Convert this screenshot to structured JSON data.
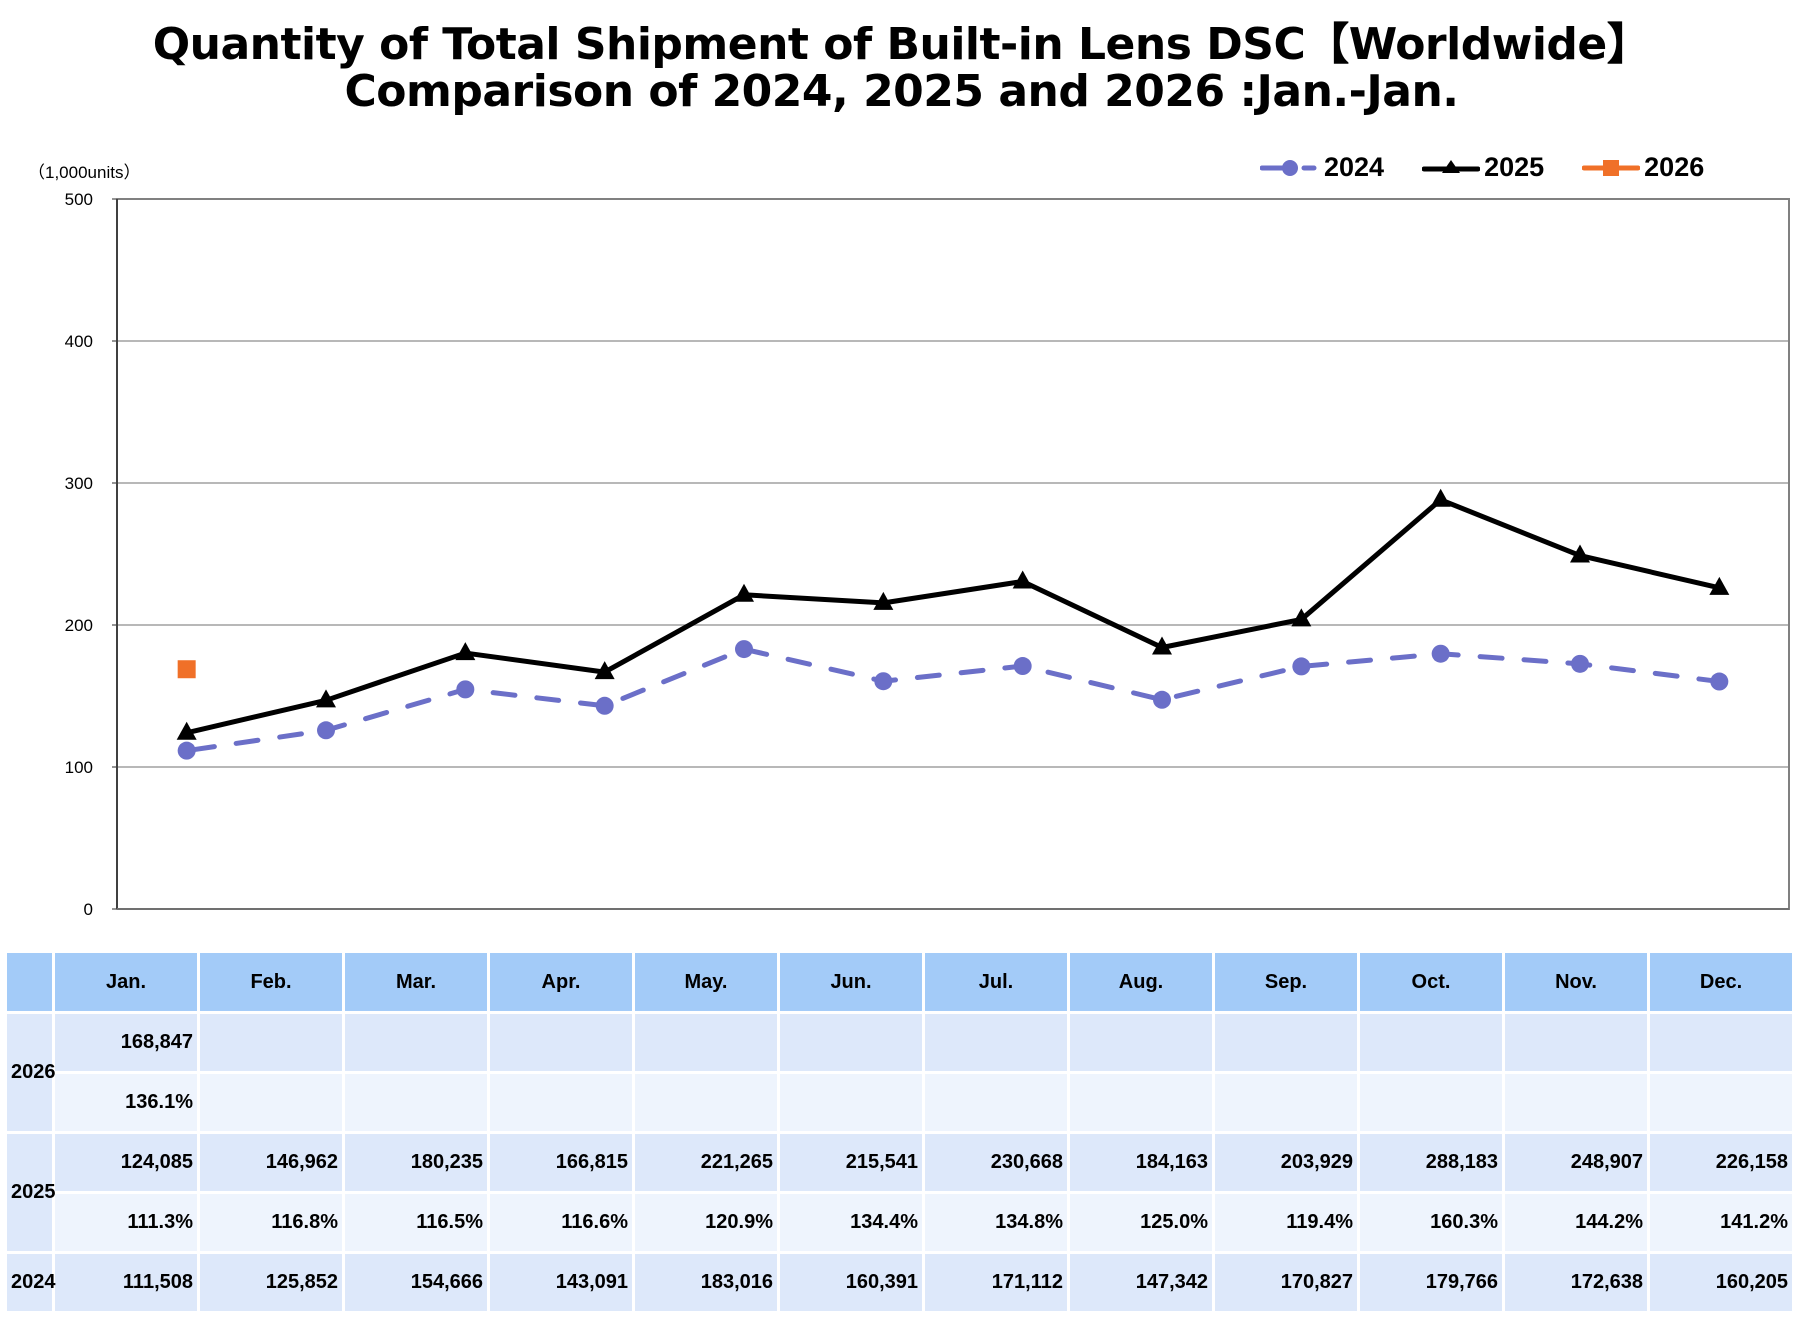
{
  "title_line1": "Quantity of Total Shipment of Built-in Lens DSC【Worldwide】",
  "title_line2": "Comparison of 2024, 2025 and 2026 :Jan.-Jan.",
  "unit_label": "（1,000units）",
  "legend": [
    {
      "label": "2024",
      "color": "#6b6fc8",
      "marker": "circle",
      "dash": true
    },
    {
      "label": "2025",
      "color": "#000000",
      "marker": "triangle",
      "dash": false
    },
    {
      "label": "2026",
      "color": "#f07028",
      "marker": "square",
      "dash": false
    }
  ],
  "chart_data": {
    "type": "line",
    "title": "Quantity of Total Shipment of Built-in Lens DSC【Worldwide】 Comparison of 2024, 2025 and 2026 :Jan.-Jan.",
    "xlabel": "",
    "ylabel": "(1,000units)",
    "ylim": [
      0,
      500
    ],
    "yticks": [
      0,
      100,
      200,
      300,
      400,
      500
    ],
    "grid": true,
    "legend_position": "top-right",
    "categories": [
      "Jan.",
      "Feb.",
      "Mar.",
      "Apr.",
      "May.",
      "Jun.",
      "Jul.",
      "Aug.",
      "Sep.",
      "Oct.",
      "Nov.",
      "Dec."
    ],
    "series": [
      {
        "name": "2024",
        "color": "#6b6fc8",
        "values": [
          111.508,
          125.852,
          154.666,
          143.091,
          183.016,
          160.391,
          171.112,
          147.342,
          170.827,
          179.766,
          172.638,
          160.205
        ]
      },
      {
        "name": "2025",
        "color": "#000000",
        "values": [
          124.085,
          146.962,
          180.235,
          166.815,
          221.265,
          215.541,
          230.668,
          184.163,
          203.929,
          288.183,
          248.907,
          226.158
        ]
      },
      {
        "name": "2026",
        "color": "#f07028",
        "values": [
          168.847
        ]
      }
    ]
  },
  "table": {
    "months": [
      "Jan.",
      "Feb.",
      "Mar.",
      "Apr.",
      "May.",
      "Jun.",
      "Jul.",
      "Aug.",
      "Sep.",
      "Oct.",
      "Nov.",
      "Dec."
    ],
    "rows": [
      {
        "year": "2026",
        "values": [
          "168,847",
          "",
          "",
          "",
          "",
          "",
          "",
          "",
          "",
          "",
          "",
          ""
        ],
        "percents": [
          "136.1%",
          "",
          "",
          "",
          "",
          "",
          "",
          "",
          "",
          "",
          "",
          ""
        ]
      },
      {
        "year": "2025",
        "values": [
          "124,085",
          "146,962",
          "180,235",
          "166,815",
          "221,265",
          "215,541",
          "230,668",
          "184,163",
          "203,929",
          "288,183",
          "248,907",
          "226,158"
        ],
        "percents": [
          "111.3%",
          "116.8%",
          "116.5%",
          "116.6%",
          "120.9%",
          "134.4%",
          "134.8%",
          "125.0%",
          "119.4%",
          "160.3%",
          "144.2%",
          "141.2%"
        ]
      },
      {
        "year": "2024",
        "values": [
          "111,508",
          "125,852",
          "154,666",
          "143,091",
          "183,016",
          "160,391",
          "171,112",
          "147,342",
          "170,827",
          "179,766",
          "172,638",
          "160,205"
        ]
      }
    ]
  }
}
